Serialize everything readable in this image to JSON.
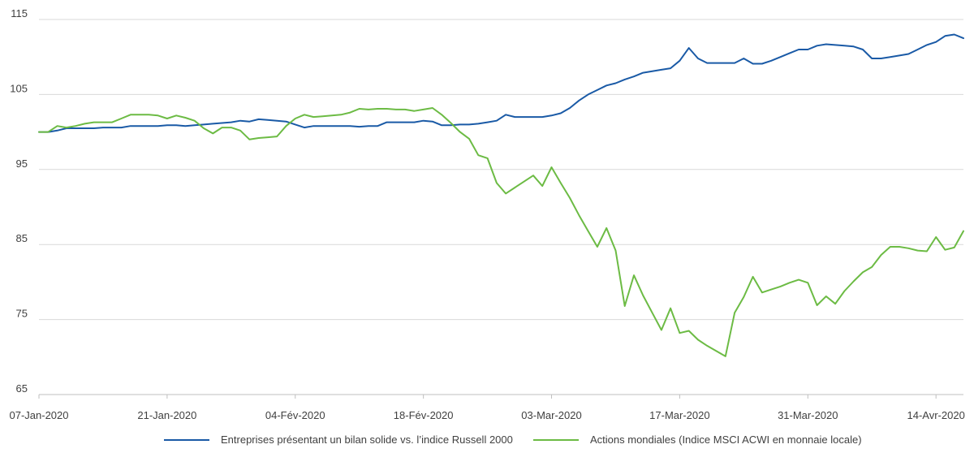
{
  "chart_data": {
    "type": "line",
    "title": "",
    "xlabel": "",
    "ylabel": "",
    "ylim": [
      65,
      115
    ],
    "y_ticks": [
      115,
      105,
      95,
      85,
      75,
      65
    ],
    "x_tick_labels": [
      "07-Jan-2020",
      "21-Jan-2020",
      "04-Fév-2020",
      "18-Fév-2020",
      "03-Mar-2020",
      "17-Mar-2020",
      "31-Mar-2020",
      "14-Avr-2020"
    ],
    "x_tick_days": [
      0,
      14,
      28,
      42,
      56,
      70,
      84,
      98
    ],
    "grid": "horizontal",
    "legend_position": "bottom",
    "series": [
      {
        "name": "Entreprises présentant un bilan solide vs. l’indice Russell 2000",
        "color": "#1a5aa6",
        "x": [
          0,
          1,
          2,
          3,
          4,
          5,
          6,
          7,
          8,
          9,
          10,
          11,
          12,
          13,
          14,
          15,
          16,
          17,
          18,
          19,
          20,
          21,
          22,
          23,
          24,
          25,
          26,
          27,
          28,
          29,
          30,
          31,
          32,
          33,
          34,
          35,
          36,
          37,
          38,
          39,
          40,
          41,
          42,
          43,
          44,
          45,
          46,
          47,
          48,
          49,
          50,
          51,
          52,
          53,
          54,
          55,
          56,
          57,
          58,
          59,
          60,
          61,
          62,
          63,
          64,
          65,
          66,
          67,
          68,
          69,
          70,
          71,
          72,
          73,
          74,
          75,
          76,
          77,
          78,
          79,
          80,
          81,
          82,
          83,
          84,
          85,
          86,
          87,
          88,
          89,
          90,
          91,
          92,
          93,
          94,
          95,
          96,
          97,
          98,
          99,
          100,
          101
        ],
        "y": [
          100,
          100,
          100.2,
          100.5,
          100.5,
          100.5,
          100.5,
          100.6,
          100.6,
          100.6,
          100.8,
          100.8,
          100.8,
          100.8,
          100.9,
          100.9,
          100.8,
          100.9,
          101.0,
          101.1,
          101.2,
          101.3,
          101.5,
          101.4,
          101.7,
          101.6,
          101.5,
          101.4,
          101.0,
          100.6,
          100.8,
          100.8,
          100.8,
          100.8,
          100.8,
          100.7,
          100.8,
          100.8,
          101.3,
          101.3,
          101.3,
          101.3,
          101.5,
          101.4,
          100.9,
          100.9,
          101.0,
          101.0,
          101.1,
          101.3,
          101.5,
          102.3,
          102.0,
          102.0,
          102.0,
          102.0,
          102.2,
          102.5,
          103.2,
          104.2,
          105.0,
          105.6,
          106.2,
          106.5,
          107.0,
          107.4,
          107.9,
          108.1,
          108.3,
          108.5,
          109.5,
          111.2,
          109.8,
          109.2,
          109.2,
          109.2,
          109.2,
          109.8,
          109.1,
          109.1,
          109.5,
          110.0,
          110.5,
          111.0,
          111.0,
          111.5,
          111.7,
          111.6,
          111.5,
          111.4,
          111.0,
          109.8,
          109.8,
          110.0,
          110.2,
          110.4,
          111.0,
          111.6,
          112.0,
          112.8,
          113.0,
          112.5
        ]
      },
      {
        "name": "Actions mondiales (Indice MSCI ACWI en monnaie locale)",
        "color": "#6cbb44",
        "x": [
          0,
          1,
          2,
          3,
          4,
          5,
          6,
          7,
          8,
          9,
          10,
          11,
          12,
          13,
          14,
          15,
          16,
          17,
          18,
          19,
          20,
          21,
          22,
          23,
          24,
          25,
          26,
          27,
          28,
          29,
          30,
          31,
          32,
          33,
          34,
          35,
          36,
          37,
          38,
          39,
          40,
          41,
          42,
          43,
          44,
          45,
          46,
          47,
          48,
          49,
          50,
          51,
          52,
          53,
          54,
          55,
          56,
          57,
          58,
          59,
          60,
          61,
          62,
          63,
          64,
          65,
          66,
          67,
          68,
          69,
          70,
          71,
          72,
          73,
          74,
          75,
          76,
          77,
          78,
          79,
          80,
          81,
          82,
          83,
          84,
          85,
          86,
          87,
          88,
          89,
          90,
          91,
          92,
          93,
          94,
          95,
          96,
          97,
          98,
          99,
          100,
          101
        ],
        "y": [
          100,
          100,
          100.8,
          100.6,
          100.8,
          101.1,
          101.3,
          101.3,
          101.3,
          101.8,
          102.3,
          102.3,
          102.3,
          102.2,
          101.8,
          102.2,
          101.9,
          101.5,
          100.5,
          99.8,
          100.6,
          100.6,
          100.2,
          99.0,
          99.2,
          99.3,
          99.4,
          100.8,
          101.8,
          102.3,
          102.0,
          102.1,
          102.2,
          102.3,
          102.6,
          103.1,
          103.0,
          103.1,
          103.1,
          103.0,
          103.0,
          102.8,
          103.0,
          103.2,
          102.3,
          101.2,
          100.0,
          99.1,
          96.9,
          96.5,
          93.2,
          91.8,
          92.6,
          93.4,
          94.2,
          92.8,
          95.3,
          93.2,
          91.2,
          88.9,
          86.8,
          84.7,
          87.2,
          84.2,
          76.8,
          80.9,
          78.2,
          75.9,
          73.6,
          76.5,
          73.2,
          73.5,
          72.3,
          71.5,
          70.8,
          70.1,
          75.9,
          78.0,
          80.7,
          78.6,
          79.0,
          79.4,
          79.9,
          80.3,
          79.9,
          76.9,
          78.1,
          77.1,
          78.8,
          80.1,
          81.3,
          82.0,
          83.6,
          84.7,
          84.7,
          84.5,
          84.2,
          84.1,
          86.0,
          84.3,
          84.6,
          86.8
        ]
      }
    ]
  }
}
